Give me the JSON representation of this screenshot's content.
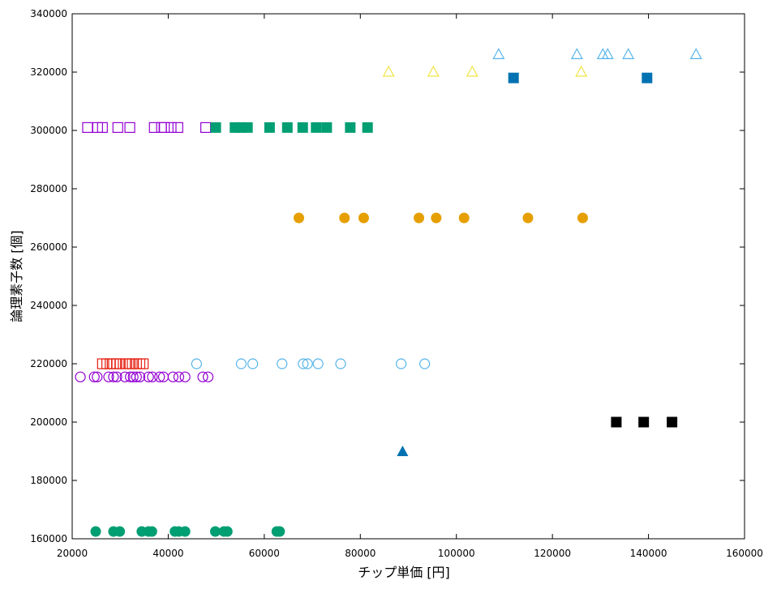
{
  "chart_data": {
    "type": "scatter",
    "xlabel": "チップ単価 [円]",
    "ylabel": "論理素子数 [個]",
    "xlim": [
      20000,
      160000
    ],
    "ylim": [
      160000,
      340000
    ],
    "xticks": [
      20000,
      40000,
      60000,
      80000,
      100000,
      120000,
      140000,
      160000
    ],
    "yticks": [
      160000,
      180000,
      200000,
      220000,
      240000,
      260000,
      280000,
      300000,
      320000,
      340000
    ],
    "grid": false,
    "legend": "none",
    "series": [
      {
        "marker": "open-triangle",
        "color": "#56b4e9",
        "points": [
          [
            108800,
            326000
          ],
          [
            125100,
            326000
          ],
          [
            130500,
            326000
          ],
          [
            131500,
            326000
          ],
          [
            135800,
            326000
          ],
          [
            149900,
            326000
          ]
        ]
      },
      {
        "marker": "open-triangle",
        "color": "#f0e442",
        "points": [
          [
            85900,
            320000
          ],
          [
            95200,
            320000
          ],
          [
            103300,
            320000
          ],
          [
            126000,
            320000
          ]
        ]
      },
      {
        "marker": "filled-square",
        "color": "#0072b2",
        "points": [
          [
            111900,
            318000
          ],
          [
            139700,
            318000
          ]
        ]
      },
      {
        "marker": "open-square",
        "color": "#9400d3",
        "points": [
          [
            23200,
            301000
          ],
          [
            25300,
            301000
          ],
          [
            26300,
            301000
          ],
          [
            29500,
            301000
          ],
          [
            32000,
            301000
          ],
          [
            37100,
            301000
          ],
          [
            38600,
            301000
          ],
          [
            39200,
            301000
          ],
          [
            40600,
            301000
          ],
          [
            42000,
            301000
          ],
          [
            47800,
            301000
          ]
        ]
      },
      {
        "marker": "filled-square",
        "color": "#009e73",
        "points": [
          [
            49900,
            301000
          ],
          [
            53900,
            301000
          ],
          [
            55100,
            301000
          ],
          [
            56500,
            301000
          ],
          [
            61100,
            301000
          ],
          [
            64800,
            301000
          ],
          [
            68000,
            301000
          ],
          [
            70800,
            301000
          ],
          [
            73000,
            301000
          ],
          [
            77900,
            301000
          ],
          [
            81500,
            301000
          ]
        ]
      },
      {
        "marker": "filled-circle",
        "color": "#e69f00",
        "points": [
          [
            67200,
            270000
          ],
          [
            76700,
            270000
          ],
          [
            80700,
            270000
          ],
          [
            92200,
            270000
          ],
          [
            95800,
            270000
          ],
          [
            101600,
            270000
          ],
          [
            114900,
            270000
          ],
          [
            126300,
            270000
          ]
        ]
      },
      {
        "marker": "open-square",
        "color": "#e51e10",
        "points": [
          [
            26300,
            220000
          ],
          [
            27200,
            220000
          ],
          [
            27900,
            220000
          ],
          [
            28600,
            220000
          ],
          [
            29300,
            220000
          ],
          [
            30000,
            220000
          ],
          [
            31100,
            220000
          ],
          [
            31800,
            220000
          ],
          [
            32500,
            220000
          ],
          [
            33400,
            220000
          ],
          [
            34100,
            220000
          ],
          [
            34800,
            220000
          ]
        ]
      },
      {
        "marker": "open-circle",
        "color": "#56b4e9",
        "points": [
          [
            45900,
            220000
          ],
          [
            55200,
            220000
          ],
          [
            57600,
            220000
          ],
          [
            63700,
            220000
          ],
          [
            68100,
            220000
          ],
          [
            69000,
            220000
          ],
          [
            71200,
            220000
          ],
          [
            75900,
            220000
          ],
          [
            88500,
            220000
          ],
          [
            93400,
            220000
          ]
        ]
      },
      {
        "marker": "open-circle",
        "color": "#9400d3",
        "points": [
          [
            21700,
            215500
          ],
          [
            24600,
            215500
          ],
          [
            25200,
            215500
          ],
          [
            27600,
            215500
          ],
          [
            28600,
            215500
          ],
          [
            29300,
            215500
          ],
          [
            31000,
            215500
          ],
          [
            32100,
            215500
          ],
          [
            32700,
            215500
          ],
          [
            33400,
            215500
          ],
          [
            34100,
            215500
          ],
          [
            35900,
            215500
          ],
          [
            36700,
            215500
          ],
          [
            38200,
            215500
          ],
          [
            39000,
            215500
          ],
          [
            41000,
            215500
          ],
          [
            42200,
            215500
          ],
          [
            43500,
            215500
          ],
          [
            47200,
            215500
          ],
          [
            48300,
            215500
          ]
        ]
      },
      {
        "marker": "filled-square",
        "color": "#000000",
        "points": [
          [
            133300,
            200000
          ],
          [
            139000,
            200000
          ],
          [
            144900,
            200000
          ]
        ]
      },
      {
        "marker": "filled-triangle",
        "color": "#0072b2",
        "points": [
          [
            88800,
            190000
          ]
        ]
      },
      {
        "marker": "filled-circle",
        "color": "#009e73",
        "points": [
          [
            24900,
            162500
          ],
          [
            28600,
            162500
          ],
          [
            29900,
            162500
          ],
          [
            34500,
            162500
          ],
          [
            35900,
            162500
          ],
          [
            36600,
            162500
          ],
          [
            41400,
            162500
          ],
          [
            42200,
            162500
          ],
          [
            43500,
            162500
          ],
          [
            49800,
            162500
          ],
          [
            51600,
            162500
          ],
          [
            52300,
            162500
          ],
          [
            62600,
            162500
          ],
          [
            63200,
            162500
          ]
        ]
      }
    ]
  }
}
